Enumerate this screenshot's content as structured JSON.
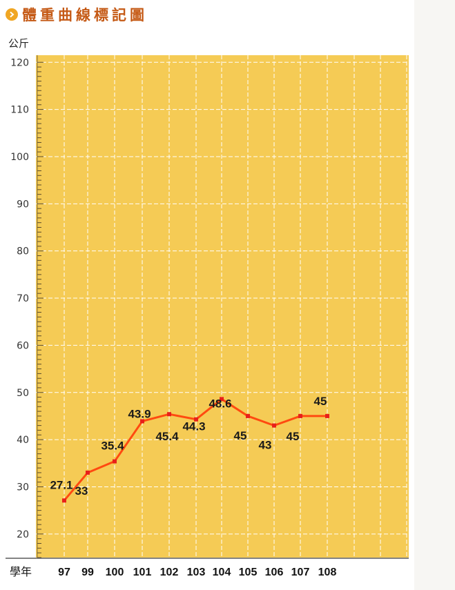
{
  "page": {
    "title": "體重曲線標記圖"
  },
  "chart_data": {
    "type": "line",
    "title": "體重曲線標記圖",
    "ylabel": "公斤",
    "xlabel": "學年",
    "ylim": [
      15,
      121.5
    ],
    "y_ticks": [
      20,
      30,
      40,
      50,
      60,
      70,
      80,
      90,
      100,
      110,
      120
    ],
    "categories": [
      "97",
      "99",
      "100",
      "101",
      "102",
      "103",
      "104",
      "105",
      "106",
      "107",
      "108"
    ],
    "series": [
      {
        "values": [
          27.1,
          33,
          35.4,
          43.9,
          45.4,
          44.3,
          48.6,
          45,
          43,
          45,
          45
        ],
        "labels": [
          "27.1",
          "33",
          "35.4",
          "43.9",
          "45.4",
          "44.3",
          "48.6",
          "45",
          "43",
          "45",
          "45"
        ]
      }
    ],
    "grid": true,
    "colors": {
      "plot_background": "#f5cb55",
      "line": "#ff4a10",
      "marker": "#e8201a",
      "grid": "#ffffff",
      "title": "#c55a16"
    }
  }
}
